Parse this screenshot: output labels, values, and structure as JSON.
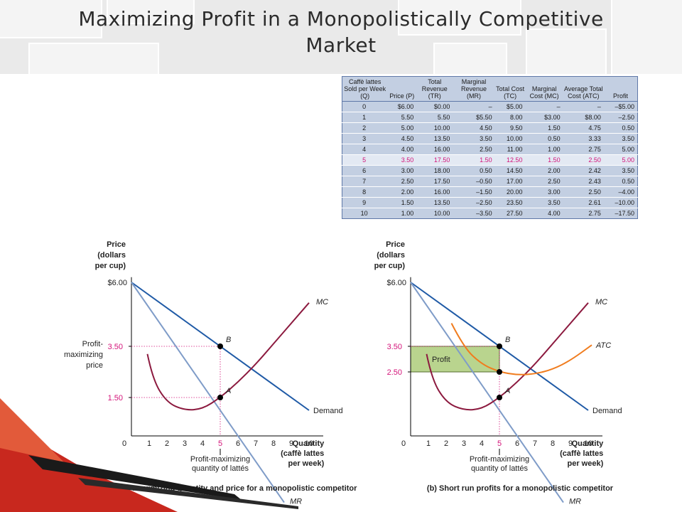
{
  "title": {
    "line1": "Maximizing Profit in a Monopolistically Competitive",
    "line2": "Market"
  },
  "table": {
    "headers": [
      "Caffè lattes Sold per Week (Q)",
      "Price (P)",
      "Total Revenue (TR)",
      "Marginal Revenue (MR)",
      "Total Cost (TC)",
      "Marginal Cost (MC)",
      "Average Total Cost (ATC)",
      "Profit"
    ],
    "rows": [
      [
        "0",
        "$6.00",
        "$0.00",
        "–",
        "$5.00",
        "–",
        "–",
        "–$5.00"
      ],
      [
        "1",
        "5.50",
        "5.50",
        "$5.50",
        "8.00",
        "$3.00",
        "$8.00",
        "–2.50"
      ],
      [
        "2",
        "5.00",
        "10.00",
        "4.50",
        "9.50",
        "1.50",
        "4.75",
        "0.50"
      ],
      [
        "3",
        "4.50",
        "13.50",
        "3.50",
        "10.00",
        "0.50",
        "3.33",
        "3.50"
      ],
      [
        "4",
        "4.00",
        "16.00",
        "2.50",
        "11.00",
        "1.00",
        "2.75",
        "5.00"
      ],
      [
        "5",
        "3.50",
        "17.50",
        "1.50",
        "12.50",
        "1.50",
        "2.50",
        "5.00"
      ],
      [
        "6",
        "3.00",
        "18.00",
        "0.50",
        "14.50",
        "2.00",
        "2.42",
        "3.50"
      ],
      [
        "7",
        "2.50",
        "17.50",
        "–0.50",
        "17.00",
        "2.50",
        "2.43",
        "0.50"
      ],
      [
        "8",
        "2.00",
        "16.00",
        "–1.50",
        "20.00",
        "3.00",
        "2.50",
        "–4.00"
      ],
      [
        "9",
        "1.50",
        "13.50",
        "–2.50",
        "23.50",
        "3.50",
        "2.61",
        "–10.00"
      ],
      [
        "10",
        "1.00",
        "10.00",
        "–3.50",
        "27.50",
        "4.00",
        "2.75",
        "–17.50"
      ]
    ],
    "highlight_row": 5,
    "highlight_color": "#d4147a"
  },
  "chart_data": [
    {
      "type": "line",
      "title": "(a) Profit-maximizing quantity and price for a monopolistic competitor",
      "ylabel": "Price (dollars per cup)",
      "xlabel": "Quantity (caffè lattes per week)",
      "x_ticks": [
        "0",
        "1",
        "2",
        "3",
        "4",
        "5",
        "6",
        "7",
        "8",
        "9",
        "10"
      ],
      "xlim": [
        0,
        11
      ],
      "ylim": [
        0,
        6.2
      ],
      "y_tick_labels": {
        "top": "$6.00",
        "price": "3.50",
        "mr": "1.50"
      },
      "y_side_label": "Profit-maximizing price",
      "x_annotation": "Profit-maximizing quantity of  lattés",
      "series": [
        {
          "name": "Demand",
          "x": [
            0,
            10
          ],
          "y": [
            6.0,
            1.0
          ],
          "color": "#1f5aa6"
        },
        {
          "name": "MR",
          "x": [
            0,
            8.6
          ],
          "y": [
            6.0,
            -2.6
          ],
          "color": "#7f9cc8"
        },
        {
          "name": "MC",
          "x": [
            0.9,
            1.2,
            2,
            3,
            4,
            5,
            6,
            7,
            8,
            9,
            10
          ],
          "y": [
            3.2,
            2.2,
            1.3,
            1.0,
            1.05,
            1.5,
            2.1,
            2.8,
            3.6,
            4.4,
            5.2
          ],
          "color": "#8c1a3f"
        }
      ],
      "points": [
        {
          "label": "B",
          "x": 5,
          "y": 3.5
        },
        {
          "label": "A",
          "x": 5,
          "y": 1.5
        }
      ]
    },
    {
      "type": "line",
      "title": "(b) Short run profits for a monopolistic competitor",
      "ylabel": "Price (dollars per cup)",
      "xlabel": "Quantity (caffè lattes per week)",
      "x_ticks": [
        "0",
        "1",
        "2",
        "3",
        "4",
        "5",
        "6",
        "7",
        "8",
        "9",
        "10"
      ],
      "xlim": [
        0,
        11
      ],
      "ylim": [
        0,
        6.2
      ],
      "y_tick_labels": {
        "top": "$6.00",
        "price": "3.50",
        "atc": "2.50"
      },
      "x_annotation": "Profit-maximizing quantity of  lattés",
      "profit_area": {
        "label": "Profit",
        "x": [
          0,
          5
        ],
        "y": [
          2.5,
          3.5
        ],
        "color": "#b9d48e"
      },
      "series": [
        {
          "name": "Demand",
          "x": [
            0,
            10
          ],
          "y": [
            6.0,
            1.0
          ],
          "color": "#1f5aa6"
        },
        {
          "name": "MR",
          "x": [
            0,
            8.6
          ],
          "y": [
            6.0,
            -2.6
          ],
          "color": "#7f9cc8"
        },
        {
          "name": "MC",
          "x": [
            0.9,
            1.2,
            2,
            3,
            4,
            5,
            6,
            7,
            8,
            9,
            10
          ],
          "y": [
            3.2,
            2.2,
            1.3,
            1.0,
            1.05,
            1.5,
            2.1,
            2.8,
            3.6,
            4.4,
            5.2
          ],
          "color": "#8c1a3f"
        },
        {
          "name": "ATC",
          "x": [
            2.3,
            3,
            4,
            5,
            6,
            7,
            8,
            9,
            10.2
          ],
          "y": [
            4.4,
            3.45,
            2.8,
            2.5,
            2.38,
            2.42,
            2.6,
            2.95,
            3.55
          ],
          "color": "#f07c1e"
        }
      ],
      "points": [
        {
          "label": "B",
          "x": 5,
          "y": 3.5
        },
        {
          "label": "",
          "x": 5,
          "y": 2.5
        },
        {
          "label": "A",
          "x": 5,
          "y": 1.5
        }
      ]
    }
  ]
}
